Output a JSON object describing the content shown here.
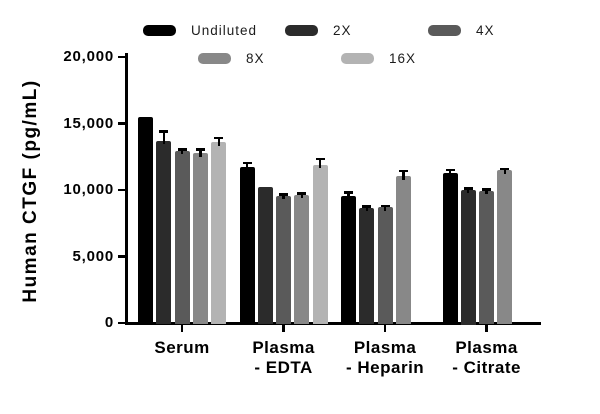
{
  "legend": {
    "items": [
      {
        "label": "Undiluted",
        "color": "#000000"
      },
      {
        "label": "2X",
        "color": "#2b2b2b"
      },
      {
        "label": "4X",
        "color": "#5a5a5a"
      },
      {
        "label": "8X",
        "color": "#888888"
      },
      {
        "label": "16X",
        "color": "#b3b3b3"
      }
    ]
  },
  "chart_data": {
    "type": "bar",
    "title": "",
    "xlabel": "",
    "ylabel": "Human CTGF (pg/mL)",
    "ylim": [
      0,
      20000
    ],
    "yticks": [
      0,
      5000,
      10000,
      15000,
      20000
    ],
    "ytick_labels": [
      "0",
      "5,000",
      "10,000",
      "15,000",
      "20,000"
    ],
    "grid": false,
    "legend_position": "top",
    "error_bars": "sd, upper only",
    "categories": [
      "Serum",
      "Plasma - EDTA",
      "Plasma - Heparin",
      "Plasma - Citrate"
    ],
    "category_label_lines": [
      [
        "Serum"
      ],
      [
        "Plasma",
        "- EDTA"
      ],
      [
        "Plasma",
        "- Heparin"
      ],
      [
        "Plasma",
        "- Citrate"
      ]
    ],
    "series": [
      {
        "name": "Undiluted",
        "color": "#000000",
        "values": [
          15500,
          11750,
          9550,
          11250
        ],
        "errors": [
          0,
          300,
          250,
          250
        ]
      },
      {
        "name": "2X",
        "color": "#2b2b2b",
        "values": [
          13700,
          10250,
          8650,
          10000
        ],
        "errors": [
          700,
          0,
          100,
          100
        ]
      },
      {
        "name": "4X",
        "color": "#5a5a5a",
        "values": [
          12950,
          9550,
          8700,
          9950
        ],
        "errors": [
          100,
          100,
          100,
          100
        ]
      },
      {
        "name": "8X",
        "color": "#888888",
        "values": [
          12750,
          9650,
          11050,
          11500
        ],
        "errors": [
          300,
          100,
          400,
          100
        ]
      },
      {
        "name": "16X",
        "color": "#b3b3b3",
        "values": [
          13600,
          11900,
          null,
          null
        ],
        "errors": [
          300,
          450,
          null,
          null
        ]
      }
    ]
  }
}
